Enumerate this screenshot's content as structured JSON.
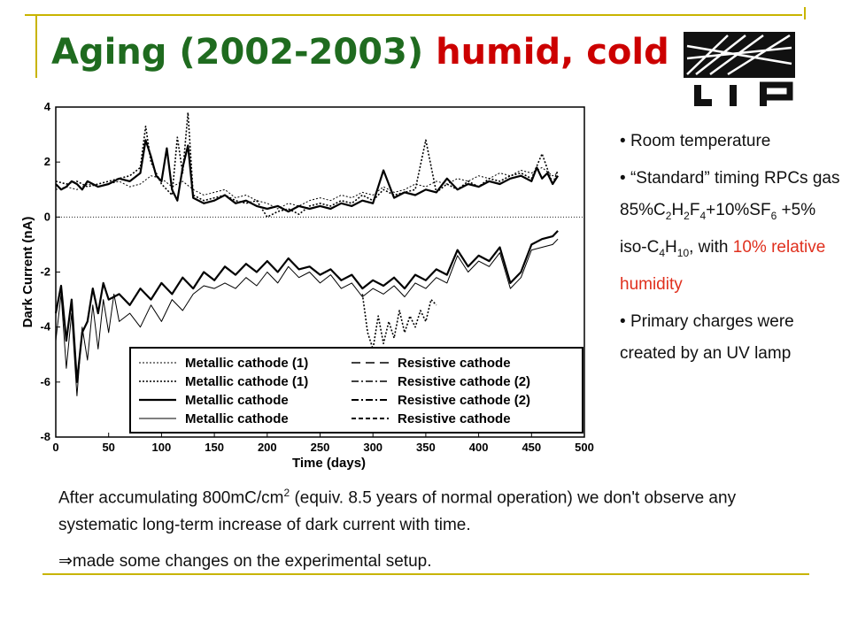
{
  "slide": {
    "title_main": "Aging (2002-2003)",
    "title_accent": "humid, cold",
    "logo_text": "LIP",
    "bullets": {
      "b1": "Room temperature",
      "b2_prefix": "“Standard” timing RPCs gas 85%C",
      "b2_sub1": "2",
      "b2_mid1": "H",
      "b2_sub2": "2",
      "b2_mid2": "F",
      "b2_sub3": "4",
      "b2_mid3": "+10%SF",
      "b2_sub4": "6",
      "b2_mid4": " +5% iso-C",
      "b2_sub5": "4",
      "b2_mid5": "H",
      "b2_sub6": "10",
      "b2_suffix": ", with",
      "b2_red": "10% relative humidity",
      "b3": "Primary charges were created by an UV lamp"
    },
    "footnote": {
      "p1_a": "After accumulating 800mC/cm",
      "p1_sup": "2",
      "p1_b": " (equiv. 8.5 years of normal operation)  we don't observe any systematic long-term increase of dark current with time.",
      "arrow": "⇒",
      "p2": "made some changes on the experimental setup."
    },
    "colors": {
      "title": "#1f6b1f",
      "accent": "#cc0000",
      "humidity": "#e0301e",
      "rule": "#c8b400"
    }
  },
  "chart_data": {
    "type": "line",
    "xlabel": "Time (days)",
    "ylabel": "Dark Current (nA)",
    "xlim": [
      0,
      500
    ],
    "ylim": [
      -8,
      4
    ],
    "xticks": [
      0,
      50,
      100,
      150,
      200,
      250,
      300,
      350,
      400,
      450,
      500
    ],
    "yticks": [
      -8,
      -6,
      -4,
      -2,
      0,
      2,
      4
    ],
    "zero_line": true,
    "legend_position": "lower-center",
    "legend": [
      {
        "label": "Metallic cathode (1)",
        "style": "dotted-thin"
      },
      {
        "label": "Metallic cathode (1)",
        "style": "dotted"
      },
      {
        "label": "Metallic cathode",
        "style": "solid-thick"
      },
      {
        "label": "Metallic cathode",
        "style": "solid-thin"
      },
      {
        "label": "Resistive cathode",
        "style": "long-dash"
      },
      {
        "label": "Resistive cathode (2)",
        "style": "dash-dot"
      },
      {
        "label": "Resistive cathode (2)",
        "style": "dash-dot-thick"
      },
      {
        "label": "Resistive cathode",
        "style": "short-dash"
      }
    ],
    "series": [
      {
        "style": "solid-thick",
        "x": [
          0,
          5,
          10,
          15,
          20,
          25,
          30,
          40,
          50,
          60,
          70,
          80,
          85,
          90,
          95,
          100,
          105,
          110,
          115,
          120,
          125,
          130,
          140,
          150,
          160,
          170,
          180,
          190,
          200,
          210,
          220,
          230,
          240,
          250,
          260,
          270,
          280,
          290,
          300,
          310,
          320,
          330,
          340,
          350,
          360,
          370,
          380,
          390,
          400,
          410,
          420,
          430,
          440,
          450,
          455,
          460,
          465,
          470,
          475
        ],
        "y": [
          1.2,
          1.0,
          1.1,
          1.3,
          1.2,
          1.0,
          1.3,
          1.1,
          1.2,
          1.4,
          1.3,
          1.6,
          2.8,
          2.2,
          1.5,
          1.3,
          2.5,
          1.0,
          0.6,
          1.8,
          2.6,
          0.7,
          0.5,
          0.6,
          0.8,
          0.5,
          0.6,
          0.4,
          0.3,
          0.4,
          0.2,
          0.4,
          0.3,
          0.4,
          0.3,
          0.5,
          0.4,
          0.6,
          0.5,
          1.7,
          0.7,
          0.9,
          0.8,
          1.0,
          0.9,
          1.4,
          1.0,
          1.2,
          1.1,
          1.3,
          1.2,
          1.4,
          1.5,
          1.3,
          1.8,
          1.4,
          1.6,
          1.2,
          1.5
        ]
      },
      {
        "style": "dotted",
        "x": [
          0,
          10,
          20,
          30,
          40,
          50,
          60,
          70,
          80,
          85,
          90,
          95,
          100,
          110,
          115,
          120,
          125,
          130,
          140,
          150,
          160,
          170,
          180,
          190,
          200,
          210,
          220,
          230,
          240,
          250,
          260,
          270,
          280,
          290,
          300,
          310,
          320,
          330,
          340,
          350,
          360,
          370,
          380,
          390,
          400,
          410,
          420,
          430,
          440,
          450,
          460,
          470,
          475
        ],
        "y": [
          1.3,
          1.2,
          1.3,
          1.1,
          1.2,
          1.3,
          1.4,
          1.5,
          1.8,
          3.3,
          2.0,
          1.6,
          1.2,
          0.8,
          2.9,
          1.6,
          3.8,
          0.8,
          0.6,
          0.7,
          0.8,
          0.6,
          0.5,
          0.6,
          0.0,
          0.2,
          0.3,
          0.1,
          0.4,
          0.5,
          0.4,
          0.6,
          0.5,
          0.8,
          0.6,
          1.0,
          0.8,
          0.9,
          1.0,
          2.8,
          0.9,
          1.2,
          1.0,
          1.3,
          1.1,
          1.4,
          1.3,
          1.5,
          1.6,
          1.4,
          2.3,
          1.2,
          1.7
        ]
      },
      {
        "style": "dotted-thin",
        "x": [
          0,
          10,
          20,
          30,
          40,
          50,
          60,
          70,
          80,
          90,
          100,
          110,
          120,
          130,
          140,
          150,
          160,
          170,
          180,
          190,
          200,
          210,
          220,
          230,
          240,
          250,
          260,
          270,
          280,
          290,
          300,
          310,
          320,
          330,
          340,
          350,
          360,
          370,
          380,
          390,
          400,
          410,
          420,
          430,
          440,
          450,
          460,
          470,
          475
        ],
        "y": [
          1.0,
          1.1,
          1.0,
          1.2,
          1.1,
          1.2,
          1.3,
          1.1,
          1.2,
          1.5,
          1.4,
          1.1,
          1.3,
          1.0,
          0.8,
          0.9,
          1.0,
          0.7,
          0.8,
          0.6,
          0.5,
          0.3,
          0.5,
          0.4,
          0.6,
          0.7,
          0.6,
          0.8,
          0.7,
          0.9,
          0.8,
          1.1,
          0.9,
          1.0,
          1.2,
          1.1,
          1.3,
          1.2,
          1.4,
          1.3,
          1.5,
          1.4,
          1.6,
          1.5,
          1.7,
          1.6,
          1.8,
          1.5,
          1.6
        ]
      },
      {
        "style": "solid-thin",
        "x": [
          0,
          5,
          10,
          15,
          20,
          25,
          30,
          35,
          40,
          45,
          50,
          55,
          60,
          70,
          80,
          90,
          100,
          110,
          120,
          130,
          140,
          150,
          160,
          170,
          180,
          190,
          200,
          210,
          220,
          230,
          240,
          250,
          260,
          270,
          280,
          290,
          300,
          310,
          320,
          330,
          340,
          350,
          360,
          370,
          380,
          390,
          400,
          410,
          420,
          430,
          440,
          450,
          460,
          470,
          475
        ],
        "y": [
          -4.5,
          -2.8,
          -5.5,
          -3.5,
          -6.5,
          -4.0,
          -5.2,
          -3.2,
          -4.8,
          -3.0,
          -4.2,
          -2.8,
          -3.8,
          -3.5,
          -4.0,
          -3.2,
          -3.8,
          -3.0,
          -3.4,
          -2.8,
          -2.5,
          -2.6,
          -2.4,
          -2.6,
          -2.2,
          -2.5,
          -2.0,
          -2.4,
          -1.8,
          -2.2,
          -2.0,
          -2.4,
          -2.1,
          -2.6,
          -2.4,
          -2.9,
          -2.6,
          -2.8,
          -2.5,
          -2.9,
          -2.4,
          -2.6,
          -2.2,
          -2.4,
          -1.4,
          -2.0,
          -1.6,
          -1.8,
          -1.3,
          -2.6,
          -2.2,
          -1.2,
          -1.1,
          -1.0,
          -0.8
        ]
      },
      {
        "style": "solid-thick",
        "x": [
          0,
          5,
          10,
          15,
          20,
          25,
          30,
          35,
          40,
          45,
          50,
          60,
          70,
          80,
          90,
          100,
          110,
          120,
          130,
          140,
          150,
          160,
          170,
          180,
          190,
          200,
          210,
          220,
          230,
          240,
          250,
          260,
          270,
          280,
          290,
          300,
          310,
          320,
          330,
          340,
          350,
          360,
          370,
          380,
          390,
          400,
          410,
          420,
          430,
          440,
          450,
          460,
          470,
          475
        ],
        "y": [
          -3.5,
          -2.5,
          -4.5,
          -3.0,
          -6.0,
          -4.2,
          -3.8,
          -2.6,
          -3.5,
          -2.4,
          -3.0,
          -2.8,
          -3.2,
          -2.6,
          -3.0,
          -2.4,
          -2.8,
          -2.2,
          -2.6,
          -2.0,
          -2.3,
          -1.8,
          -2.1,
          -1.7,
          -2.0,
          -1.6,
          -2.0,
          -1.5,
          -1.9,
          -1.8,
          -2.1,
          -1.9,
          -2.3,
          -2.1,
          -2.6,
          -2.3,
          -2.5,
          -2.2,
          -2.6,
          -2.1,
          -2.3,
          -1.9,
          -2.1,
          -1.2,
          -1.8,
          -1.4,
          -1.6,
          -1.1,
          -2.4,
          -2.0,
          -1.0,
          -0.8,
          -0.7,
          -0.5
        ]
      },
      {
        "style": "dotted",
        "x": [
          290,
          295,
          300,
          305,
          310,
          315,
          320,
          325,
          330,
          335,
          340,
          345,
          350,
          355,
          360
        ],
        "y": [
          -2.8,
          -4.2,
          -4.8,
          -3.6,
          -4.6,
          -3.8,
          -4.4,
          -3.4,
          -4.2,
          -3.6,
          -4.0,
          -3.4,
          -3.8,
          -3.0,
          -3.2
        ]
      }
    ]
  }
}
